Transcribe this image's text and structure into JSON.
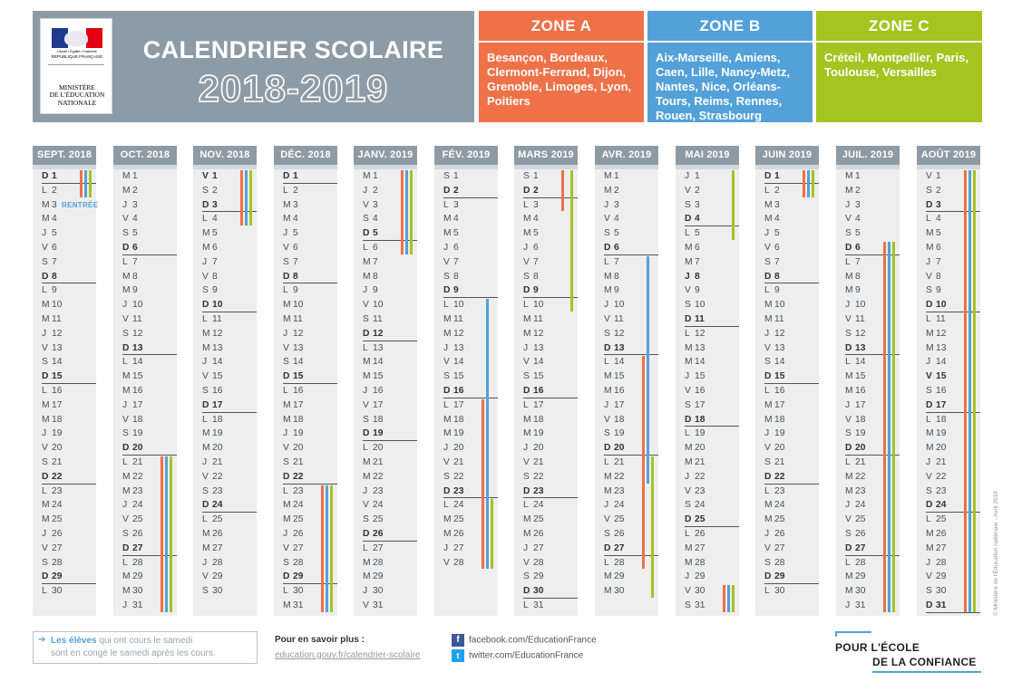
{
  "header": {
    "logo_motto": "Liberté • Égalité • Fraternité",
    "logo_republic": "RÉPUBLIQUE FRANÇAISE",
    "logo_ministry": [
      "MINISTÈRE",
      "DE L'ÉDUCATION",
      "NATIONALE"
    ],
    "title": "CALENDRIER SCOLAIRE",
    "years": "2018-2019"
  },
  "zones": {
    "a": {
      "label": "ZONE A",
      "cities": "Besançon, Bordeaux, Clermont-Ferrand, Dijon, Grenoble, Limoges, Lyon, Poitiers",
      "color": "#ef7147"
    },
    "b": {
      "label": "ZONE B",
      "cities": "Aix-Marseille, Amiens, Caen, Lille, Nancy-Metz, Nantes, Nice, Orléans-Tours, Reims, Rennes, Rouen, Strasbourg",
      "color": "#53a1d8"
    },
    "c": {
      "label": "ZONE C",
      "cities": "Créteil, Montpellier, Paris, Toulouse, Versailles",
      "color": "#a4c420"
    }
  },
  "months": [
    {
      "key": "sep",
      "label": "SEPT. 2018",
      "first": 6,
      "days": 30
    },
    {
      "key": "oct",
      "label": "OCT. 2018",
      "first": 1,
      "days": 31
    },
    {
      "key": "nov",
      "label": "NOV. 2018",
      "first": 4,
      "days": 30
    },
    {
      "key": "dec",
      "label": "DÉC. 2018",
      "first": 6,
      "days": 31
    },
    {
      "key": "jan",
      "label": "JANV. 2019",
      "first": 2,
      "days": 31
    },
    {
      "key": "feb",
      "label": "FÉV. 2019",
      "first": 5,
      "days": 28
    },
    {
      "key": "mar",
      "label": "MARS 2019",
      "first": 5,
      "days": 31
    },
    {
      "key": "apr",
      "label": "AVR. 2019",
      "first": 1,
      "days": 30
    },
    {
      "key": "may",
      "label": "MAI 2019",
      "first": 3,
      "days": 31
    },
    {
      "key": "jun",
      "label": "JUIN 2019",
      "first": 6,
      "days": 30
    },
    {
      "key": "jul",
      "label": "JUIL. 2019",
      "first": 1,
      "days": 31
    },
    {
      "key": "aug",
      "label": "AOÛT 2019",
      "first": 4,
      "days": 31
    }
  ],
  "weekday_letters": [
    "L",
    "M",
    "M",
    "J",
    "V",
    "S",
    "D"
  ],
  "bold_days": {
    "nov": [
      1
    ],
    "may": [
      8
    ],
    "aug": [
      15
    ]
  },
  "annotations": {
    "sep": {
      "day": 3,
      "text": "RENTRÉE"
    }
  },
  "holidays": [
    {
      "month": "sep",
      "zone": "a",
      "from": 1,
      "to": 2
    },
    {
      "month": "sep",
      "zone": "b",
      "from": 1,
      "to": 2
    },
    {
      "month": "sep",
      "zone": "c",
      "from": 1,
      "to": 2
    },
    {
      "month": "oct",
      "zone": "a",
      "from": 21,
      "to": 31
    },
    {
      "month": "oct",
      "zone": "b",
      "from": 21,
      "to": 31
    },
    {
      "month": "oct",
      "zone": "c",
      "from": 21,
      "to": 31
    },
    {
      "month": "nov",
      "zone": "a",
      "from": 1,
      "to": 4
    },
    {
      "month": "nov",
      "zone": "b",
      "from": 1,
      "to": 4
    },
    {
      "month": "nov",
      "zone": "c",
      "from": 1,
      "to": 4
    },
    {
      "month": "dec",
      "zone": "a",
      "from": 23,
      "to": 31
    },
    {
      "month": "dec",
      "zone": "b",
      "from": 23,
      "to": 31
    },
    {
      "month": "dec",
      "zone": "c",
      "from": 23,
      "to": 31
    },
    {
      "month": "jan",
      "zone": "a",
      "from": 1,
      "to": 6
    },
    {
      "month": "jan",
      "zone": "b",
      "from": 1,
      "to": 6
    },
    {
      "month": "jan",
      "zone": "c",
      "from": 1,
      "to": 6
    },
    {
      "month": "feb",
      "zone": "b",
      "from": 10,
      "to": 28
    },
    {
      "month": "feb",
      "zone": "a",
      "from": 17,
      "to": 28
    },
    {
      "month": "feb",
      "zone": "c",
      "from": 24,
      "to": 28
    },
    {
      "month": "mar",
      "zone": "a",
      "from": 1,
      "to": 3
    },
    {
      "month": "mar",
      "zone": "c",
      "from": 1,
      "to": 10
    },
    {
      "month": "apr",
      "zone": "b",
      "from": 7,
      "to": 22
    },
    {
      "month": "apr",
      "zone": "a",
      "from": 14,
      "to": 28
    },
    {
      "month": "apr",
      "zone": "c",
      "from": 21,
      "to": 30
    },
    {
      "month": "may",
      "zone": "c",
      "from": 1,
      "to": 5
    },
    {
      "month": "may",
      "zone": "a",
      "from": 30,
      "to": 31
    },
    {
      "month": "may",
      "zone": "b",
      "from": 30,
      "to": 31
    },
    {
      "month": "may",
      "zone": "c",
      "from": 30,
      "to": 31
    },
    {
      "month": "jun",
      "zone": "a",
      "from": 1,
      "to": 2
    },
    {
      "month": "jun",
      "zone": "b",
      "from": 1,
      "to": 2
    },
    {
      "month": "jun",
      "zone": "c",
      "from": 1,
      "to": 2
    },
    {
      "month": "jul",
      "zone": "a",
      "from": 6,
      "to": 31
    },
    {
      "month": "jul",
      "zone": "b",
      "from": 6,
      "to": 31
    },
    {
      "month": "jul",
      "zone": "c",
      "from": 6,
      "to": 31
    },
    {
      "month": "aug",
      "zone": "a",
      "from": 1,
      "to": 31
    },
    {
      "month": "aug",
      "zone": "b",
      "from": 1,
      "to": 31
    },
    {
      "month": "aug",
      "zone": "c",
      "from": 1,
      "to": 31
    }
  ],
  "footer": {
    "note_bold": "Les élèves",
    "note_rest": " qui ont cours le samedi",
    "note_line2": "sont en congé le samedi après les cours.",
    "more_label": "Pour en savoir plus :",
    "more_link": "education.gouv.fr/calendrier-scolaire",
    "facebook": "facebook.com/EducationFrance",
    "twitter": "twitter.com/EducationFrance",
    "slogan_1": "POUR L'ÉCOLE",
    "slogan_2": "DE LA CONFIANCE",
    "credit": "© Ministère de l'Éducation nationale - Avril 2018"
  }
}
